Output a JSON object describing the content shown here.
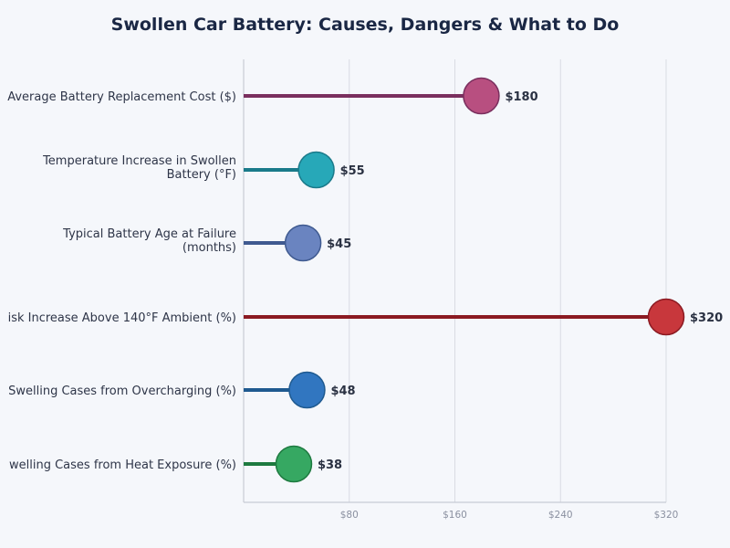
{
  "chart_data": {
    "type": "lollipop",
    "title": "Swollen Car Battery: Causes, Dangers & What to Do",
    "orientation": "horizontal",
    "categories": [
      "Average Battery Replacement Cost ($)",
      "Temperature Increase in Swollen Battery (°F)",
      "Typical Battery Age at Failure (months)",
      "isk Increase Above 140°F Ambient (%)",
      "Swelling Cases from Overcharging (%)",
      "welling Cases from Heat Exposure (%)"
    ],
    "category_lines": [
      [
        "Average Battery Replacement Cost ($)"
      ],
      [
        "Temperature Increase in Swollen",
        "Battery (°F)"
      ],
      [
        "Typical Battery Age at Failure",
        "(months)"
      ],
      [
        "isk Increase Above 140°F Ambient (%)"
      ],
      [
        "Swelling Cases from Overcharging (%)"
      ],
      [
        "welling Cases from Heat Exposure (%)"
      ]
    ],
    "values": [
      180,
      55,
      45,
      320,
      48,
      38
    ],
    "data_labels": [
      "$180",
      "$55",
      "$45",
      "$320",
      "$48",
      "$38"
    ],
    "colors": [
      {
        "line": "#7a2f5e",
        "dot": "#b84f80",
        "stroke": "#7a2f5e"
      },
      {
        "line": "#1a7a8a",
        "dot": "#27a8b8",
        "stroke": "#1a7a8a"
      },
      {
        "line": "#3f5a90",
        "dot": "#6a84c0",
        "stroke": "#3f5a90"
      },
      {
        "line": "#8b1a22",
        "dot": "#c8373c",
        "stroke": "#8b1a22"
      },
      {
        "line": "#1f5a90",
        "dot": "#3176c0",
        "stroke": "#1f5a90"
      },
      {
        "line": "#1e7a40",
        "dot": "#36a862",
        "stroke": "#1e7a40"
      }
    ],
    "xlim": [
      0,
      320
    ],
    "xticks": [
      80,
      160,
      240,
      320
    ],
    "xtick_labels": [
      "$80",
      "$160",
      "$240",
      "$320"
    ],
    "grid": "vertical"
  }
}
